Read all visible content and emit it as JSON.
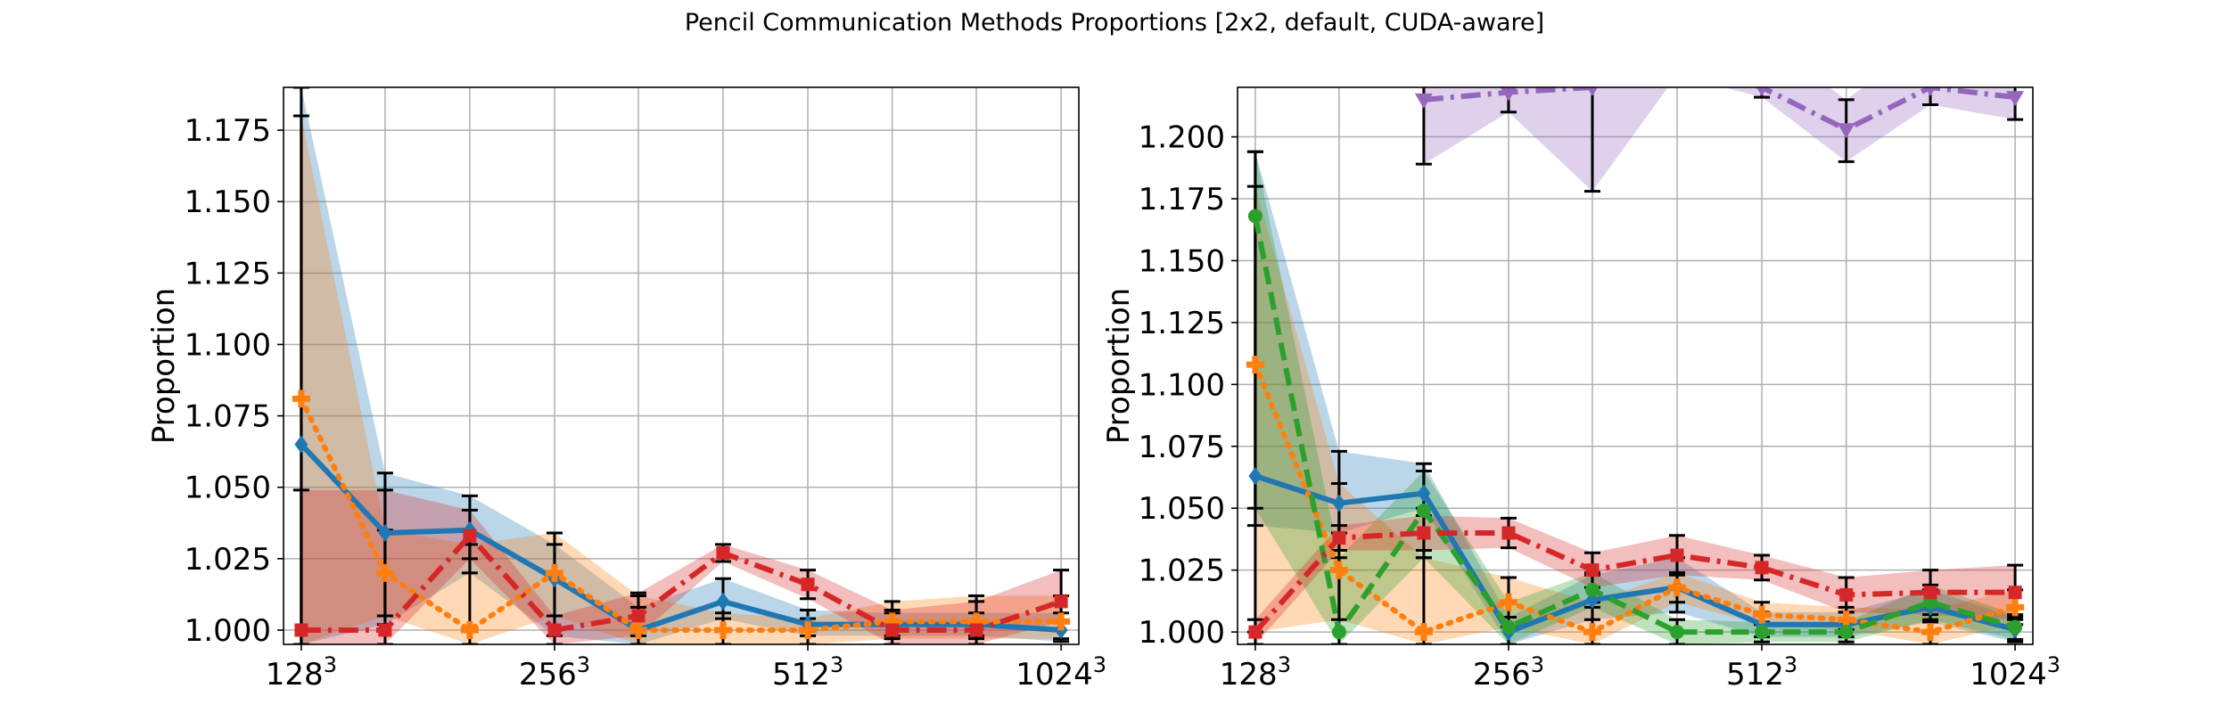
{
  "title": "Pencil Communication Methods Proportions [2x2, default, CUDA-aware]",
  "chart_data": [
    {
      "type": "line",
      "title": "",
      "xlabel": "",
      "ylabel": "Proportion",
      "xscale": "log2",
      "x": [
        128,
        161,
        203,
        256,
        322,
        406,
        512,
        645,
        812,
        1024
      ],
      "xticks": [
        {
          "value": 128,
          "base": "128",
          "exp": "3"
        },
        {
          "value": 256,
          "base": "256",
          "exp": "3"
        },
        {
          "value": 512,
          "base": "512",
          "exp": "3"
        },
        {
          "value": 1024,
          "base": "1024",
          "exp": "3"
        }
      ],
      "ylim": [
        0.995,
        1.19
      ],
      "yticks": [
        "1.000",
        "1.025",
        "1.050",
        "1.075",
        "1.100",
        "1.125",
        "1.150",
        "1.175"
      ],
      "grid": true,
      "series": [
        {
          "color": "#1f77b4",
          "linestyle": "solid",
          "marker": "diamond",
          "values": [
            1.065,
            1.034,
            1.035,
            1.018,
            1.0,
            1.01,
            1.002,
            1.002,
            1.002,
            1.0
          ],
          "lower": [
            0.995,
            1.002,
            1.02,
            0.998,
            0.995,
            1.004,
            0.998,
            0.998,
            0.998,
            0.996
          ],
          "upper": [
            1.19,
            1.055,
            1.047,
            1.03,
            1.008,
            1.018,
            1.007,
            1.006,
            1.006,
            1.006
          ]
        },
        {
          "color": "#ff7f0e",
          "linestyle": "dotted",
          "marker": "cross",
          "values": [
            1.081,
            1.02,
            1.0,
            1.02,
            1.0,
            1.0,
            1.0,
            1.003,
            1.003,
            1.003
          ],
          "lower": [
            0.995,
            1.005,
            0.995,
            1.005,
            0.995,
            0.995,
            0.995,
            0.997,
            0.997,
            0.997
          ],
          "upper": [
            1.18,
            1.035,
            1.03,
            1.034,
            1.012,
            1.006,
            1.004,
            1.01,
            1.012,
            1.012
          ]
        },
        {
          "color": "#d62728",
          "linestyle": "dashdot",
          "marker": "square",
          "values": [
            1.0,
            1.0,
            1.033,
            1.0,
            1.005,
            1.027,
            1.016,
            1.0,
            1.0,
            1.01
          ],
          "lower": [
            0.995,
            0.995,
            1.025,
            0.995,
            0.998,
            1.024,
            1.011,
            0.995,
            0.995,
            1.003
          ],
          "upper": [
            1.049,
            1.049,
            1.042,
            1.005,
            1.013,
            1.03,
            1.021,
            1.007,
            1.01,
            1.021
          ]
        }
      ]
    },
    {
      "type": "line",
      "title": "",
      "xlabel": "",
      "ylabel": "Proportion",
      "xscale": "log2",
      "x": [
        128,
        161,
        203,
        256,
        322,
        406,
        512,
        645,
        812,
        1024
      ],
      "xticks": [
        {
          "value": 128,
          "base": "128",
          "exp": "3"
        },
        {
          "value": 256,
          "base": "256",
          "exp": "3"
        },
        {
          "value": 512,
          "base": "512",
          "exp": "3"
        },
        {
          "value": 1024,
          "base": "1024",
          "exp": "3"
        }
      ],
      "ylim": [
        0.995,
        1.22
      ],
      "yticks": [
        "1.000",
        "1.025",
        "1.050",
        "1.075",
        "1.100",
        "1.125",
        "1.150",
        "1.175",
        "1.200"
      ],
      "grid": true,
      "series": [
        {
          "color": "#1f77b4",
          "linestyle": "solid",
          "marker": "diamond",
          "values": [
            1.063,
            1.052,
            1.056,
            1.0,
            1.013,
            1.018,
            1.003,
            1.003,
            1.01,
            1.001
          ],
          "lower": [
            1.043,
            1.04,
            1.05,
            0.995,
            1.005,
            1.008,
            0.998,
            0.998,
            1.004,
            0.996
          ],
          "upper": [
            1.194,
            1.073,
            1.068,
            1.006,
            1.023,
            1.03,
            1.008,
            1.008,
            1.017,
            1.006
          ]
        },
        {
          "color": "#ff7f0e",
          "linestyle": "dotted",
          "marker": "cross",
          "values": [
            1.108,
            1.025,
            1.0,
            1.012,
            1.0,
            1.018,
            1.007,
            1.005,
            1.0,
            1.01
          ],
          "lower": [
            1.0,
            1.005,
            0.995,
            1.002,
            0.995,
            1.012,
            1.003,
            1.001,
            0.995,
            1.003
          ],
          "upper": [
            1.18,
            1.06,
            1.03,
            1.022,
            1.012,
            1.024,
            1.012,
            1.01,
            1.009,
            1.017
          ]
        },
        {
          "color": "#2ca02c",
          "linestyle": "dashed",
          "marker": "circle",
          "values": [
            1.168,
            1.0,
            1.049,
            1.002,
            1.017,
            1.0,
            1.0,
            1.0,
            1.012,
            1.002
          ],
          "lower": [
            1.05,
            0.995,
            1.03,
            0.995,
            1.01,
            0.995,
            0.996,
            0.996,
            1.005,
            0.997
          ],
          "upper": [
            1.194,
            1.03,
            1.065,
            1.012,
            1.024,
            1.005,
            1.004,
            1.004,
            1.019,
            1.007
          ]
        },
        {
          "color": "#d62728",
          "linestyle": "dashdot",
          "marker": "square",
          "values": [
            1.0,
            1.038,
            1.04,
            1.04,
            1.025,
            1.031,
            1.026,
            1.015,
            1.016,
            1.016
          ],
          "lower": [
            0.995,
            1.033,
            1.033,
            1.034,
            1.018,
            1.023,
            1.021,
            1.008,
            1.007,
            1.005
          ],
          "upper": [
            1.005,
            1.043,
            1.047,
            1.046,
            1.032,
            1.039,
            1.031,
            1.022,
            1.025,
            1.027
          ]
        },
        {
          "color": "#9467bd",
          "linestyle": "dashdot",
          "marker": "triangle_down",
          "values": [
            null,
            null,
            1.215,
            1.218,
            1.22,
            1.23,
            1.22,
            1.203,
            1.22,
            1.216
          ],
          "lower": [
            null,
            null,
            1.189,
            1.21,
            1.178,
            1.225,
            1.216,
            1.19,
            1.213,
            1.207
          ],
          "upper": [
            null,
            null,
            1.24,
            1.24,
            1.24,
            1.24,
            1.24,
            1.215,
            1.24,
            1.228
          ]
        }
      ]
    }
  ]
}
